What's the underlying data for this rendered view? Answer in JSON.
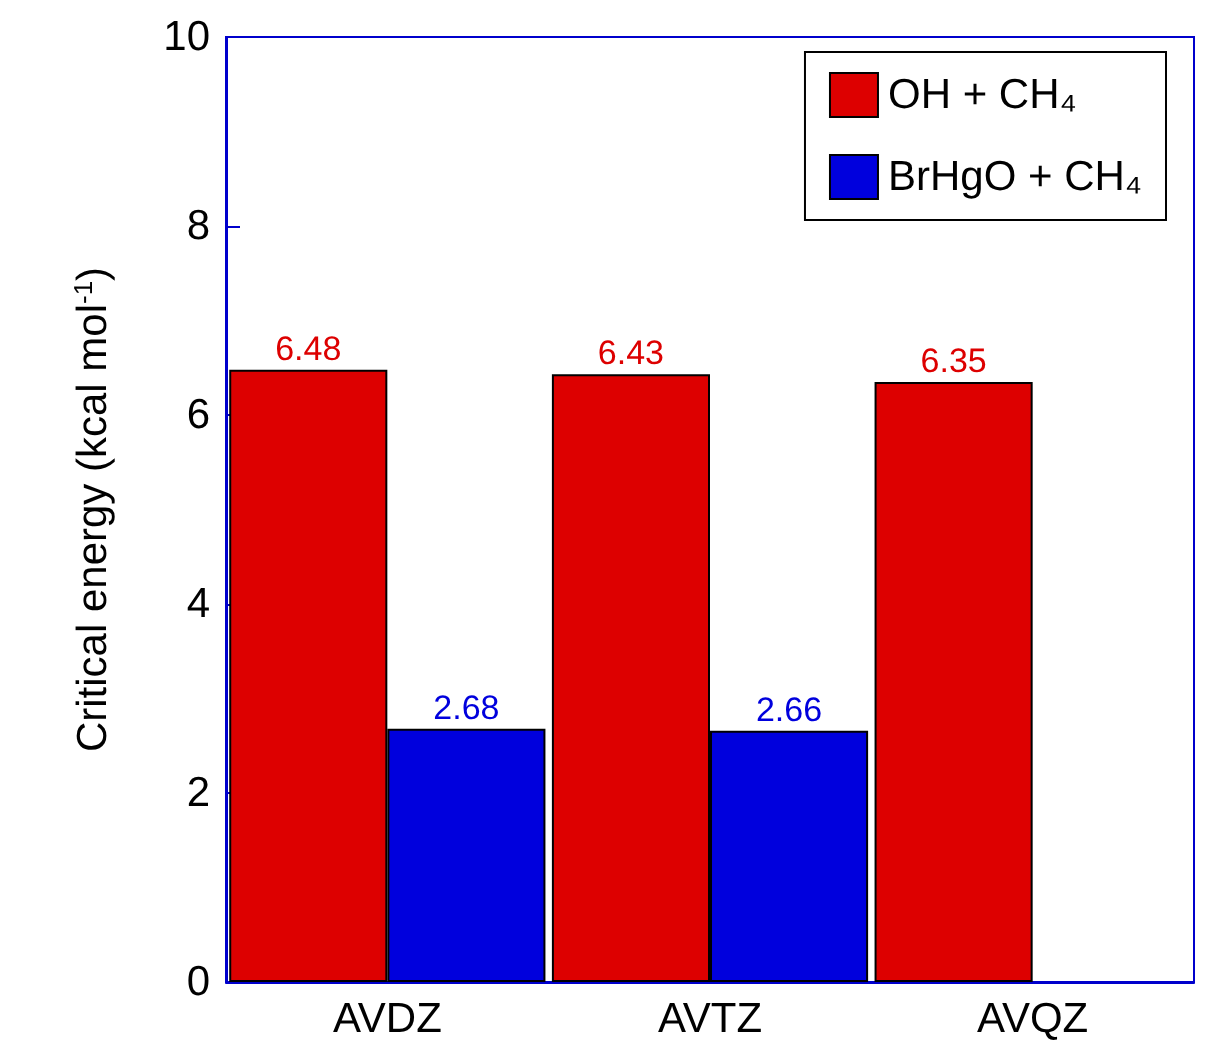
{
  "chart_data": {
    "type": "bar",
    "ylabel": "Critical energy (kcal mol$^{-1}$)",
    "categories": [
      "AVDZ",
      "AVTZ",
      "AVQZ"
    ],
    "series": [
      {
        "name": "OH + CH₄",
        "color": "#dd0000",
        "values": [
          6.48,
          6.43,
          6.35
        ]
      },
      {
        "name": "BrHgO + CH₄",
        "color": "#0000dd",
        "values": [
          2.68,
          2.66,
          null
        ]
      }
    ],
    "ylim": [
      0,
      10
    ],
    "yticks": [
      0,
      2,
      4,
      6,
      8,
      10
    ],
    "data_labels": true,
    "legend": "top right",
    "grid": false
  }
}
